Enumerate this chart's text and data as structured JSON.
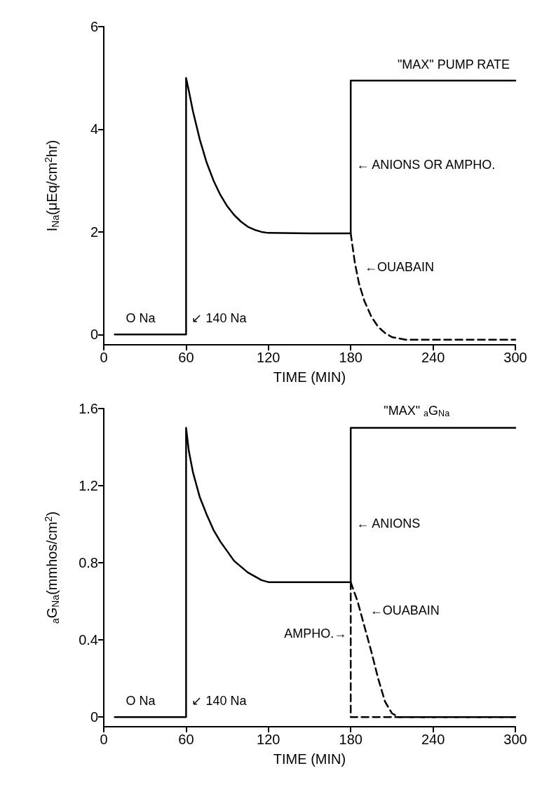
{
  "chart_data": [
    {
      "type": "line",
      "ylabel": "I$_{Na}$(μEq/cm$^{2}$hr)",
      "xlabel": "TIME (MIN)",
      "xlim": [
        0,
        300
      ],
      "xticks": [
        0,
        60,
        120,
        180,
        240,
        300
      ],
      "ylim": [
        -0.2,
        6
      ],
      "yticks": [
        0,
        2,
        4,
        6
      ],
      "grid": false,
      "marker": "none",
      "series": [
        {
          "color": "#000000",
          "line_style": "solid",
          "x": [
            8,
            60,
            60,
            62,
            65,
            70,
            75,
            80,
            85,
            90,
            95,
            100,
            105,
            110,
            115,
            120,
            150,
            180,
            180,
            300
          ],
          "values": [
            0,
            0,
            5,
            4.75,
            4.35,
            3.8,
            3.35,
            3.0,
            2.72,
            2.5,
            2.33,
            2.2,
            2.1,
            2.04,
            2.0,
            1.98,
            1.97,
            1.97,
            4.95,
            4.95
          ]
        },
        {
          "color": "#000000",
          "line_style": "dashed",
          "x": [
            180,
            183,
            186,
            190,
            195,
            200,
            205,
            210,
            220,
            300
          ],
          "values": [
            1.97,
            1.4,
            1.0,
            0.65,
            0.35,
            0.15,
            0.03,
            -0.05,
            -0.1,
            -0.1
          ]
        }
      ],
      "annotations": [
        {
          "text": "\"MAX\" PUMP RATE",
          "x": 210,
          "y": 4.95
        },
        {
          "text": "← ANIONS OR AMPHO.",
          "x": 180,
          "y": 3.0
        },
        {
          "text": "←OUABAIN",
          "x": 186,
          "y": 1.0
        },
        {
          "text": "O Na",
          "x": 12,
          "y": 0
        },
        {
          "text": "↙ 140 Na",
          "x": 60,
          "y": 0
        }
      ]
    },
    {
      "type": "line",
      "ylabel": "$_{a}$G$_{Na}$(mmhos/cm$^{2}$)",
      "xlabel": "TIME (MIN)",
      "xlim": [
        0,
        300
      ],
      "xticks": [
        0,
        60,
        120,
        180,
        240,
        300
      ],
      "ylim": [
        -0.05,
        1.6
      ],
      "yticks": [
        0,
        0.4,
        0.8,
        1.2,
        1.6
      ],
      "grid": false,
      "marker": "none",
      "series": [
        {
          "color": "#000000",
          "line_style": "solid",
          "x": [
            8,
            60,
            60,
            62,
            65,
            70,
            75,
            80,
            85,
            90,
            95,
            100,
            105,
            110,
            115,
            120,
            150,
            180,
            180,
            300
          ],
          "values": [
            0,
            0,
            1.5,
            1.38,
            1.27,
            1.14,
            1.05,
            0.97,
            0.91,
            0.86,
            0.81,
            0.78,
            0.75,
            0.73,
            0.71,
            0.7,
            0.7,
            0.7,
            1.5,
            1.5
          ]
        },
        {
          "color": "#000000",
          "line_style": "dashed",
          "x": [
            180,
            185,
            190,
            195,
            200,
            205,
            210,
            215,
            300
          ],
          "values": [
            0.7,
            0.6,
            0.47,
            0.34,
            0.2,
            0.08,
            0.02,
            0,
            0
          ]
        },
        {
          "color": "#000000",
          "line_style": "dashed",
          "x": [
            180,
            180,
            300
          ],
          "values": [
            0.7,
            0,
            0
          ]
        }
      ],
      "annotations": [
        {
          "text": "\"MAX\" $_{a}$G$_{Na}$",
          "x": 200,
          "y": 1.5
        },
        {
          "text": "← ANIONS",
          "x": 180,
          "y": 0.92
        },
        {
          "text": "←OUABAIN",
          "x": 190,
          "y": 0.47
        },
        {
          "text": "AMPHO.→",
          "x": 180,
          "y": 0.35
        },
        {
          "text": "O Na",
          "x": 12,
          "y": 0
        },
        {
          "text": "↙ 140 Na",
          "x": 60,
          "y": 0
        }
      ]
    }
  ]
}
